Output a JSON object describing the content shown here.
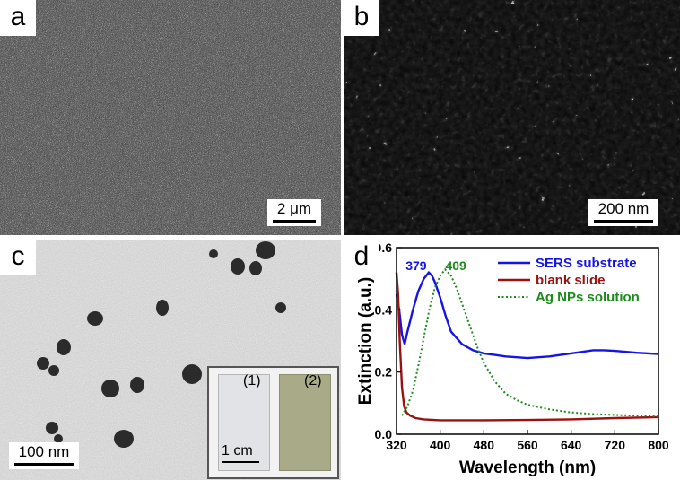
{
  "panels": {
    "a": {
      "label": "a",
      "scale_bar": "2 μm"
    },
    "b": {
      "label": "b",
      "scale_bar": "200 nm"
    },
    "c": {
      "label": "c",
      "scale_bar": "100 nm",
      "inset": {
        "left_label": "(1)",
        "right_label": "(2)",
        "scale_bar": "1 cm"
      }
    },
    "d": {
      "label": "d"
    }
  },
  "chart_data": {
    "type": "line",
    "title": "",
    "xlabel": "Wavelength (nm)",
    "ylabel": "Extinction (a.u.)",
    "xlim": [
      320,
      800
    ],
    "ylim": [
      0.0,
      0.6
    ],
    "xticks": [
      320,
      400,
      480,
      560,
      640,
      720,
      800
    ],
    "yticks": [
      0.0,
      0.2,
      0.4,
      0.6
    ],
    "xtick_labels": [
      "320",
      "400",
      "480",
      "560",
      "640",
      "720",
      "800"
    ],
    "ytick_labels": [
      "0.0",
      "0.2",
      "0.4",
      "0.6"
    ],
    "legend_position": "top-right",
    "series": [
      {
        "name": "SERS substrate",
        "color": "#1414e6",
        "style": "solid",
        "x": [
          320,
          325,
          330,
          335,
          340,
          350,
          360,
          370,
          379,
          385,
          390,
          400,
          410,
          420,
          440,
          460,
          480,
          500,
          520,
          560,
          600,
          640,
          680,
          700,
          720,
          760,
          800
        ],
        "y": [
          0.45,
          0.4,
          0.32,
          0.29,
          0.33,
          0.4,
          0.46,
          0.5,
          0.52,
          0.51,
          0.49,
          0.44,
          0.38,
          0.33,
          0.29,
          0.27,
          0.26,
          0.255,
          0.25,
          0.245,
          0.25,
          0.26,
          0.27,
          0.27,
          0.268,
          0.262,
          0.258
        ]
      },
      {
        "name": "blank slide",
        "color": "#9b1010",
        "style": "solid",
        "x": [
          320,
          323,
          326,
          330,
          334,
          338,
          345,
          355,
          370,
          400,
          480,
          560,
          640,
          720,
          800
        ],
        "y": [
          0.52,
          0.45,
          0.3,
          0.15,
          0.09,
          0.07,
          0.06,
          0.052,
          0.048,
          0.045,
          0.045,
          0.046,
          0.048,
          0.052,
          0.055
        ]
      },
      {
        "name": "Ag NPs solution",
        "color": "#1e8a1e",
        "style": "dotted",
        "x": [
          330,
          340,
          350,
          360,
          370,
          380,
          390,
          400,
          409,
          420,
          430,
          440,
          450,
          460,
          470,
          480,
          500,
          520,
          540,
          560,
          600,
          640,
          680,
          720,
          760,
          800
        ],
        "y": [
          0.06,
          0.09,
          0.14,
          0.22,
          0.31,
          0.4,
          0.47,
          0.51,
          0.53,
          0.51,
          0.47,
          0.42,
          0.37,
          0.32,
          0.27,
          0.23,
          0.17,
          0.13,
          0.11,
          0.095,
          0.08,
          0.07,
          0.065,
          0.062,
          0.06,
          0.058
        ]
      }
    ],
    "annotations": [
      {
        "text": "379",
        "color": "#1414e6",
        "x": 379
      },
      {
        "text": "409",
        "color": "#1e8a1e",
        "x": 409
      }
    ]
  }
}
